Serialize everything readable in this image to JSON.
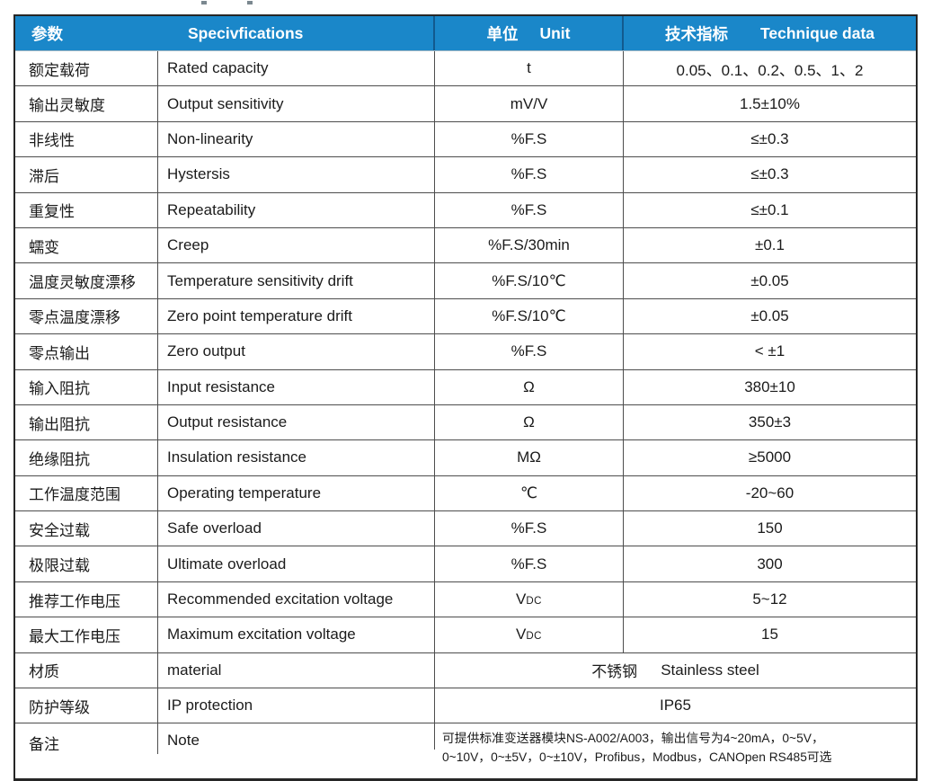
{
  "colors": {
    "header_bg": "#1a87c9",
    "header_divider": "#125a8e",
    "grid_border": "#4d4d4d",
    "outer_border": "#262626",
    "header_text": "#ffffff",
    "body_text": "#1b1b1b"
  },
  "table": {
    "header": {
      "param_zh": "参数",
      "spec_en": "Specivfications",
      "unit_zh": "单位",
      "unit_en": "Unit",
      "tech_zh": "技术指标",
      "tech_en": "Technique data"
    },
    "rows": [
      {
        "param_zh": "额定载荷",
        "spec": "Rated capacity",
        "unit": "t",
        "value": "0.05、0.1、0.2、0.5、1、2"
      },
      {
        "param_zh": "输出灵敏度",
        "spec": "Output sensitivity",
        "unit": "mV/V",
        "value": "1.5±10%"
      },
      {
        "param_zh": "非线性",
        "spec": "Non-linearity",
        "unit": "%F.S",
        "value": "≤±0.3"
      },
      {
        "param_zh": "滞后",
        "spec": "Hystersis",
        "unit": "%F.S",
        "value": "≤±0.3"
      },
      {
        "param_zh": "重复性",
        "spec": "Repeatability",
        "unit": "%F.S",
        "value": "≤±0.1"
      },
      {
        "param_zh": "蠕变",
        "spec": "Creep",
        "unit": "%F.S/30min",
        "value": "±0.1"
      },
      {
        "param_zh": "温度灵敏度漂移",
        "spec": "Temperature sensitivity drift",
        "unit": "%F.S/10℃",
        "value": "±0.05"
      },
      {
        "param_zh": "零点温度漂移",
        "spec": "Zero point temperature drift",
        "unit": "%F.S/10℃",
        "value": "±0.05"
      },
      {
        "param_zh": "零点输出",
        "spec": "Zero output",
        "unit": "%F.S",
        "value": "< ±1"
      },
      {
        "param_zh": "输入阻抗",
        "spec": "Input resistance",
        "unit": "Ω",
        "value": "380±10"
      },
      {
        "param_zh": "输出阻抗",
        "spec": "Output resistance",
        "unit": "Ω",
        "value": "350±3"
      },
      {
        "param_zh": "绝缘阻抗",
        "spec": "Insulation resistance",
        "unit": "MΩ",
        "value": "≥5000"
      },
      {
        "param_zh": "工作温度范围",
        "spec": "Operating temperature",
        "unit": "℃",
        "value": "-20~60"
      },
      {
        "param_zh": "安全过载",
        "spec": "Safe overload",
        "unit": "%F.S",
        "value": "150"
      },
      {
        "param_zh": "极限过载",
        "spec": "Ultimate overload",
        "unit": "%F.S",
        "value": "300"
      },
      {
        "param_zh": "推荐工作电压",
        "spec": "Recommended excitation voltage",
        "unit": "V",
        "unit_sub": "DC",
        "value": "5~12"
      },
      {
        "param_zh": "最大工作电压",
        "spec": "Maximum excitation voltage",
        "unit": "V",
        "unit_sub": "DC",
        "value": "15"
      },
      {
        "param_zh": "材质",
        "spec": "material",
        "merged": true,
        "value_parts": [
          "不锈钢",
          "Stainless steel"
        ]
      },
      {
        "param_zh": "防护等级",
        "spec": "IP protection",
        "merged": true,
        "value": "IP65"
      },
      {
        "param_zh": "备注",
        "spec": "Note",
        "merged": true,
        "tall": true,
        "value_lines": [
          "可提供标准变送器模块NS-A002/A003，输出信号为4~20mA，0~5V，",
          "0~10V，0~±5V，0~±10V，Profibus，Modbus，CANOpen RS485可选"
        ]
      }
    ]
  }
}
